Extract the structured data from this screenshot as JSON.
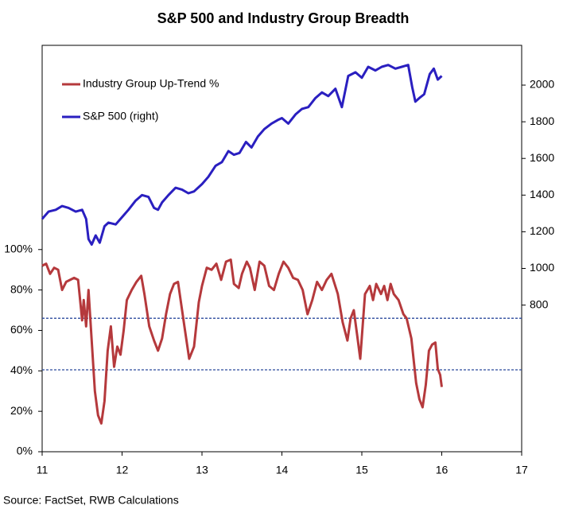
{
  "chart_data": {
    "type": "line",
    "title": "S&P 500 and Industry Group Breadth",
    "source": "Source: FactSet, RWB Calculations",
    "legend": "upper left",
    "xlim": [
      11,
      17
    ],
    "xticks": [
      11,
      12,
      13,
      14,
      15,
      16,
      17
    ],
    "ylim": [
      0,
      201
    ],
    "yticks": [
      {
        "value": 0,
        "label": "0%"
      },
      {
        "value": 20,
        "label": "20%"
      },
      {
        "value": 40,
        "label": "40%"
      },
      {
        "value": 60,
        "label": "60%"
      },
      {
        "value": 80,
        "label": "80%"
      },
      {
        "value": 100,
        "label": "100%"
      }
    ],
    "y2lim": [
      0,
      2217
    ],
    "y2ticks": [
      800,
      1000,
      1200,
      1400,
      1600,
      1800,
      2000
    ],
    "reference_lines": [
      66,
      40.5
    ],
    "reference_color": "#2b4a9c",
    "series": [
      {
        "name": "Industry Group Up-Trend %",
        "color": "#b5393c",
        "x": [
          11.0,
          11.05,
          11.1,
          11.15,
          11.2,
          11.25,
          11.3,
          11.4,
          11.45,
          11.5,
          11.52,
          11.55,
          11.58,
          11.62,
          11.66,
          11.7,
          11.74,
          11.78,
          11.82,
          11.86,
          11.9,
          11.94,
          11.98,
          12.02,
          12.06,
          12.12,
          12.18,
          12.24,
          12.28,
          12.34,
          12.4,
          12.45,
          12.5,
          12.55,
          12.6,
          12.65,
          12.7,
          12.78,
          12.84,
          12.9,
          12.96,
          13.0,
          13.06,
          13.12,
          13.18,
          13.24,
          13.3,
          13.36,
          13.4,
          13.46,
          13.5,
          13.56,
          13.6,
          13.66,
          13.72,
          13.78,
          13.84,
          13.9,
          13.96,
          14.02,
          14.08,
          14.14,
          14.2,
          14.26,
          14.32,
          14.38,
          14.44,
          14.5,
          14.56,
          14.62,
          14.7,
          14.76,
          14.82,
          14.86,
          14.9,
          14.94,
          14.98,
          15.04,
          15.1,
          15.14,
          15.18,
          15.24,
          15.28,
          15.32,
          15.36,
          15.4,
          15.46,
          15.52,
          15.56,
          15.62,
          15.68,
          15.72,
          15.76,
          15.8,
          15.84,
          15.88,
          15.92,
          15.95,
          15.98,
          16.0
        ],
        "values": [
          92,
          93,
          88,
          91,
          90,
          80,
          84,
          86,
          85,
          65,
          75,
          62,
          80,
          55,
          30,
          18,
          14,
          25,
          50,
          62,
          42,
          52,
          48,
          60,
          75,
          80,
          84,
          87,
          78,
          62,
          55,
          50,
          56,
          68,
          78,
          83,
          84,
          62,
          46,
          52,
          74,
          82,
          91,
          90,
          93,
          85,
          94,
          95,
          83,
          81,
          88,
          94,
          91,
          80,
          94,
          92,
          82,
          80,
          88,
          94,
          91,
          86,
          85,
          80,
          68,
          75,
          84,
          80,
          85,
          88,
          78,
          64,
          55,
          66,
          70,
          58,
          46,
          78,
          82,
          75,
          83,
          78,
          82,
          75,
          83,
          78,
          75,
          68,
          66,
          56,
          34,
          26,
          22,
          33,
          50,
          53,
          54,
          41,
          38,
          32
        ]
      },
      {
        "name": "S&P 500 (right)",
        "color": "#2a1fc0",
        "axis": "y2",
        "x": [
          11.0,
          11.08,
          11.17,
          11.25,
          11.33,
          11.42,
          11.5,
          11.55,
          11.58,
          11.62,
          11.67,
          11.72,
          11.78,
          11.83,
          11.92,
          12.0,
          12.08,
          12.17,
          12.25,
          12.33,
          12.4,
          12.45,
          12.5,
          12.58,
          12.67,
          12.75,
          12.83,
          12.9,
          13.0,
          13.08,
          13.17,
          13.25,
          13.33,
          13.4,
          13.47,
          13.55,
          13.62,
          13.7,
          13.78,
          13.87,
          13.95,
          14.0,
          14.08,
          14.17,
          14.25,
          14.33,
          14.42,
          14.5,
          14.58,
          14.67,
          14.75,
          14.83,
          14.92,
          15.0,
          15.08,
          15.17,
          15.25,
          15.33,
          15.42,
          15.5,
          15.58,
          15.63,
          15.67,
          15.72,
          15.78,
          15.85,
          15.9,
          15.95,
          16.0
        ],
        "values": [
          1270,
          1310,
          1320,
          1340,
          1330,
          1310,
          1320,
          1270,
          1160,
          1130,
          1180,
          1140,
          1230,
          1250,
          1240,
          1280,
          1320,
          1370,
          1400,
          1390,
          1330,
          1320,
          1360,
          1400,
          1440,
          1430,
          1410,
          1420,
          1460,
          1500,
          1560,
          1580,
          1640,
          1620,
          1630,
          1690,
          1660,
          1720,
          1760,
          1790,
          1810,
          1820,
          1790,
          1840,
          1870,
          1880,
          1930,
          1960,
          1940,
          1980,
          1880,
          2050,
          2070,
          2040,
          2100,
          2080,
          2100,
          2110,
          2090,
          2100,
          2110,
          1990,
          1910,
          1930,
          1950,
          2060,
          2090,
          2030,
          2050
        ]
      }
    ]
  }
}
